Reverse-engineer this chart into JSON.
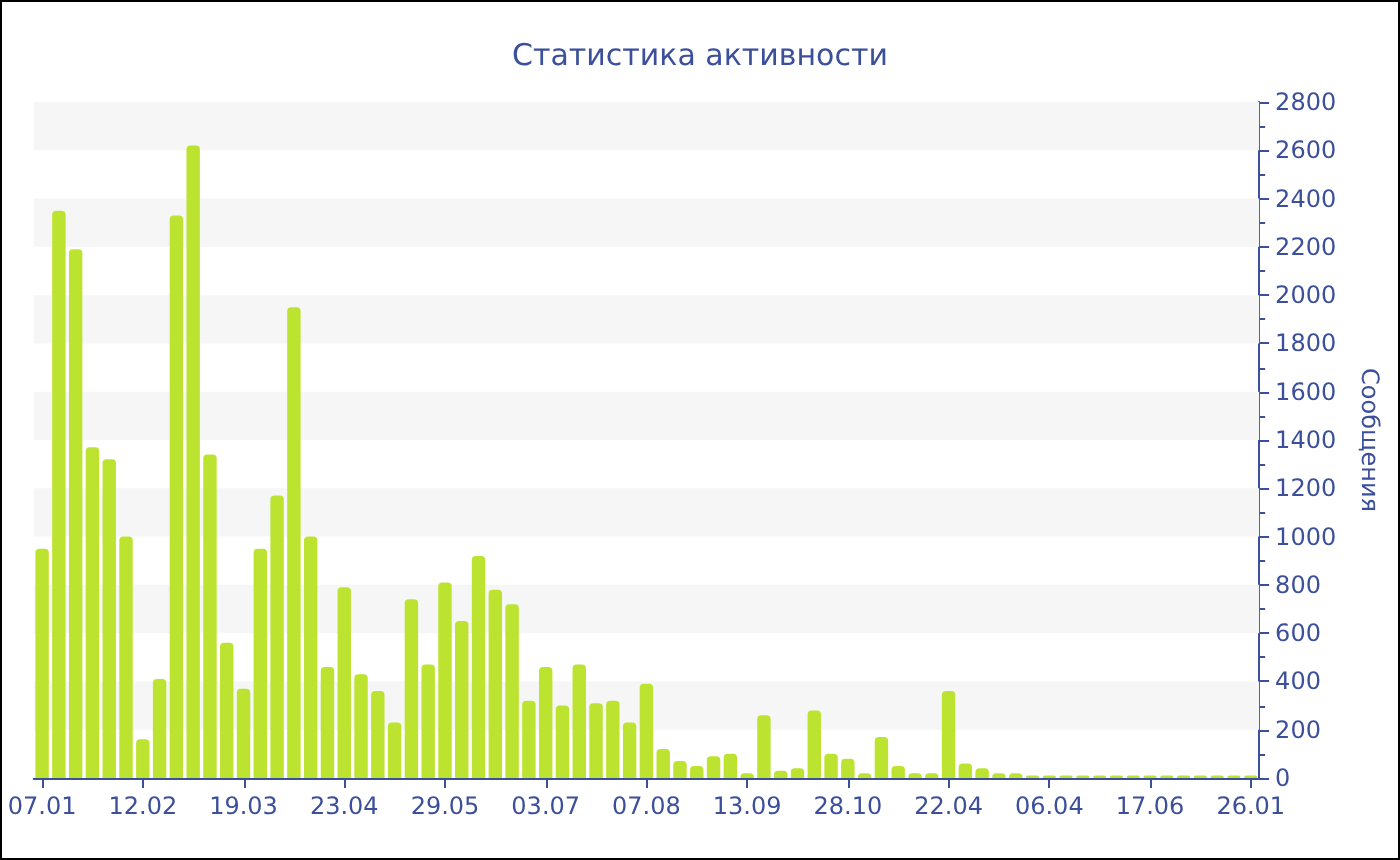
{
  "chart_data": {
    "type": "bar",
    "title": "Статистика активности",
    "ylabel": "Сообщения",
    "categories": [
      "07.01",
      null,
      null,
      null,
      null,
      null,
      "12.02",
      null,
      null,
      null,
      null,
      null,
      "19.03",
      null,
      null,
      null,
      null,
      null,
      "23.04",
      null,
      null,
      null,
      null,
      null,
      "29.05",
      null,
      null,
      null,
      null,
      null,
      "03.07",
      null,
      null,
      null,
      null,
      null,
      "07.08",
      null,
      null,
      null,
      null,
      null,
      "13.09",
      null,
      null,
      null,
      null,
      null,
      "28.10",
      null,
      null,
      null,
      null,
      null,
      "22.04",
      null,
      null,
      null,
      null,
      null,
      "06.04",
      null,
      null,
      null,
      null,
      null,
      "17.06",
      null,
      null,
      null,
      null,
      null,
      "26.01"
    ],
    "values": [
      950,
      2350,
      2190,
      1370,
      1320,
      1000,
      160,
      410,
      2330,
      2620,
      1340,
      560,
      370,
      950,
      1170,
      1950,
      1000,
      460,
      790,
      430,
      360,
      230,
      740,
      470,
      810,
      650,
      920,
      780,
      720,
      320,
      460,
      300,
      470,
      310,
      320,
      230,
      390,
      120,
      70,
      50,
      90,
      100,
      20,
      260,
      30,
      40,
      280,
      100,
      80,
      20,
      170,
      50,
      20,
      20,
      360,
      60,
      40,
      20,
      20,
      10,
      10,
      10,
      10,
      10,
      10,
      10,
      10,
      10,
      10,
      10,
      10,
      10,
      10
    ],
    "color": "#bde331",
    "ylim": [
      0,
      2800
    ],
    "yticks": [
      0,
      200,
      400,
      600,
      800,
      1000,
      1200,
      1400,
      1600,
      1800,
      2000,
      2200,
      2400,
      2600,
      2800
    ],
    "bands": [
      {
        "axis": "y",
        "from": 200,
        "to": 400,
        "color": "#f6f6f6"
      },
      {
        "axis": "y",
        "from": 600,
        "to": 800,
        "color": "#f6f6f6"
      },
      {
        "axis": "y",
        "from": 1000,
        "to": 1200,
        "color": "#f6f6f6"
      },
      {
        "axis": "y",
        "from": 1400,
        "to": 1600,
        "color": "#f6f6f6"
      },
      {
        "axis": "y",
        "from": 1800,
        "to": 2000,
        "color": "#f6f6f6"
      },
      {
        "axis": "y",
        "from": 2200,
        "to": 2400,
        "color": "#f6f6f6"
      },
      {
        "axis": "y",
        "from": 2600,
        "to": 2800,
        "color": "#f6f6f6"
      }
    ]
  }
}
